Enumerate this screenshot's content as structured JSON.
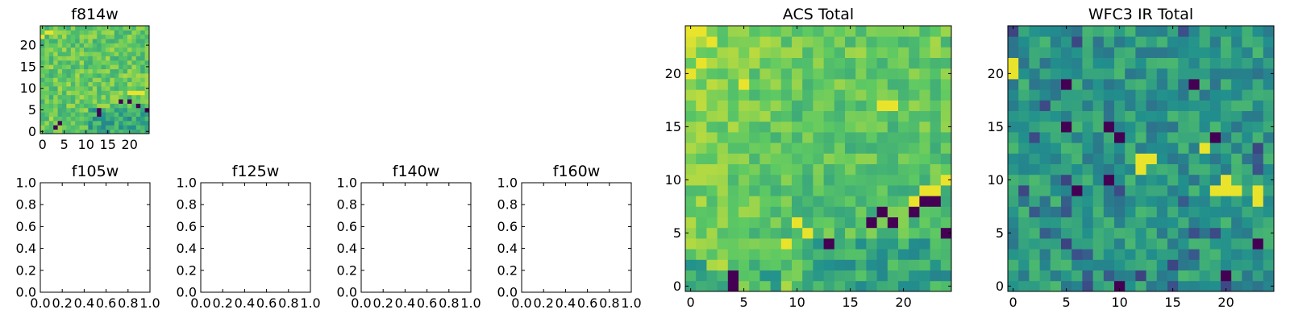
{
  "figure": {
    "colormap": [
      "#440154",
      "#3b528b",
      "#21908d",
      "#5dc963",
      "#fde725"
    ]
  },
  "chart_data": [
    {
      "id": "f814w",
      "type": "heatmap",
      "title": "f814w",
      "grid_size": [
        25,
        25
      ],
      "xlim": [
        -0.5,
        24.5
      ],
      "ylim": [
        -0.5,
        24.5
      ],
      "xticks": [
        0,
        5,
        10,
        15,
        20
      ],
      "yticks": [
        0,
        5,
        10,
        15,
        20
      ],
      "seed": 814,
      "dark_pixels": [
        [
          3,
          1
        ],
        [
          4,
          2
        ],
        [
          13,
          5
        ],
        [
          13,
          4
        ],
        [
          18,
          7
        ],
        [
          20,
          7
        ],
        [
          22,
          6
        ],
        [
          24,
          5
        ]
      ],
      "bright_pixels": [
        [
          0,
          22
        ],
        [
          1,
          23
        ],
        [
          2,
          23
        ],
        [
          20,
          9
        ],
        [
          21,
          9
        ],
        [
          22,
          9
        ],
        [
          23,
          9
        ]
      ]
    },
    {
      "id": "f105w",
      "type": "empty",
      "title": "f105w",
      "xlim": [
        0,
        1
      ],
      "ylim": [
        0,
        1
      ],
      "xticks": [
        "0.0",
        "0.2",
        "0.4",
        "0.6",
        "0.8",
        "1.0"
      ],
      "yticks": [
        "0.0",
        "0.2",
        "0.4",
        "0.6",
        "0.8",
        "1.0"
      ]
    },
    {
      "id": "f125w",
      "type": "empty",
      "title": "f125w",
      "xlim": [
        0,
        1
      ],
      "ylim": [
        0,
        1
      ],
      "xticks": [
        "0.0",
        "0.2",
        "0.4",
        "0.6",
        "0.8",
        "1.0"
      ],
      "yticks": [
        "0.0",
        "0.2",
        "0.4",
        "0.6",
        "0.8",
        "1.0"
      ]
    },
    {
      "id": "f140w",
      "type": "empty",
      "title": "f140w",
      "xlim": [
        0,
        1
      ],
      "ylim": [
        0,
        1
      ],
      "xticks": [
        "0.0",
        "0.2",
        "0.4",
        "0.6",
        "0.8",
        "1.0"
      ],
      "yticks": [
        "0.0",
        "0.2",
        "0.4",
        "0.6",
        "0.8",
        "1.0"
      ]
    },
    {
      "id": "f160w",
      "type": "empty",
      "title": "f160w",
      "xlim": [
        0,
        1
      ],
      "ylim": [
        0,
        1
      ],
      "xticks": [
        "0.0",
        "0.2",
        "0.4",
        "0.6",
        "0.8",
        "1.0"
      ],
      "yticks": [
        "0.0",
        "0.2",
        "0.4",
        "0.6",
        "0.8",
        "1.0"
      ]
    },
    {
      "id": "acs_total",
      "type": "heatmap",
      "title": "ACS Total",
      "grid_size": [
        25,
        25
      ],
      "xlim": [
        -0.5,
        24.5
      ],
      "ylim": [
        -0.5,
        24.5
      ],
      "xticks": [
        0,
        5,
        10,
        15,
        20
      ],
      "yticks": [
        0,
        5,
        10,
        15,
        20
      ],
      "seed": 1234,
      "dark_pixels": [
        [
          4,
          0
        ],
        [
          4,
          1
        ],
        [
          13,
          4
        ],
        [
          17,
          6
        ],
        [
          18,
          7
        ],
        [
          19,
          6
        ],
        [
          21,
          7
        ],
        [
          22,
          8
        ],
        [
          23,
          8
        ],
        [
          24,
          5
        ]
      ],
      "bright_pixels": [
        [
          0,
          24
        ],
        [
          1,
          24
        ],
        [
          2,
          23
        ],
        [
          0,
          20
        ],
        [
          1,
          21
        ],
        [
          5,
          19
        ],
        [
          18,
          17
        ],
        [
          19,
          17
        ],
        [
          21,
          8
        ],
        [
          22,
          9
        ],
        [
          23,
          9
        ],
        [
          24,
          10
        ],
        [
          10,
          6
        ],
        [
          11,
          5
        ],
        [
          9,
          4
        ]
      ]
    },
    {
      "id": "wfc3_ir_total",
      "type": "heatmap",
      "title": "WFC3 IR Total",
      "grid_size": [
        25,
        25
      ],
      "xlim": [
        -0.5,
        24.5
      ],
      "ylim": [
        -0.5,
        24.5
      ],
      "xticks": [
        0,
        5,
        10,
        15,
        20
      ],
      "yticks": [
        0,
        5,
        10,
        15,
        20
      ],
      "seed": 5678,
      "dark_pixels": [
        [
          5,
          19
        ],
        [
          5,
          15
        ],
        [
          9,
          15
        ],
        [
          10,
          14
        ],
        [
          9,
          10
        ],
        [
          6,
          9
        ],
        [
          10,
          0
        ],
        [
          20,
          1
        ],
        [
          23,
          4
        ],
        [
          19,
          14
        ],
        [
          17,
          19
        ]
      ],
      "bright_pixels": [
        [
          0,
          20
        ],
        [
          0,
          21
        ],
        [
          12,
          12
        ],
        [
          13,
          12
        ],
        [
          12,
          11
        ],
        [
          20,
          10
        ],
        [
          19,
          9
        ],
        [
          20,
          9
        ],
        [
          21,
          9
        ],
        [
          23,
          9
        ],
        [
          23,
          8
        ],
        [
          18,
          13
        ]
      ]
    }
  ]
}
